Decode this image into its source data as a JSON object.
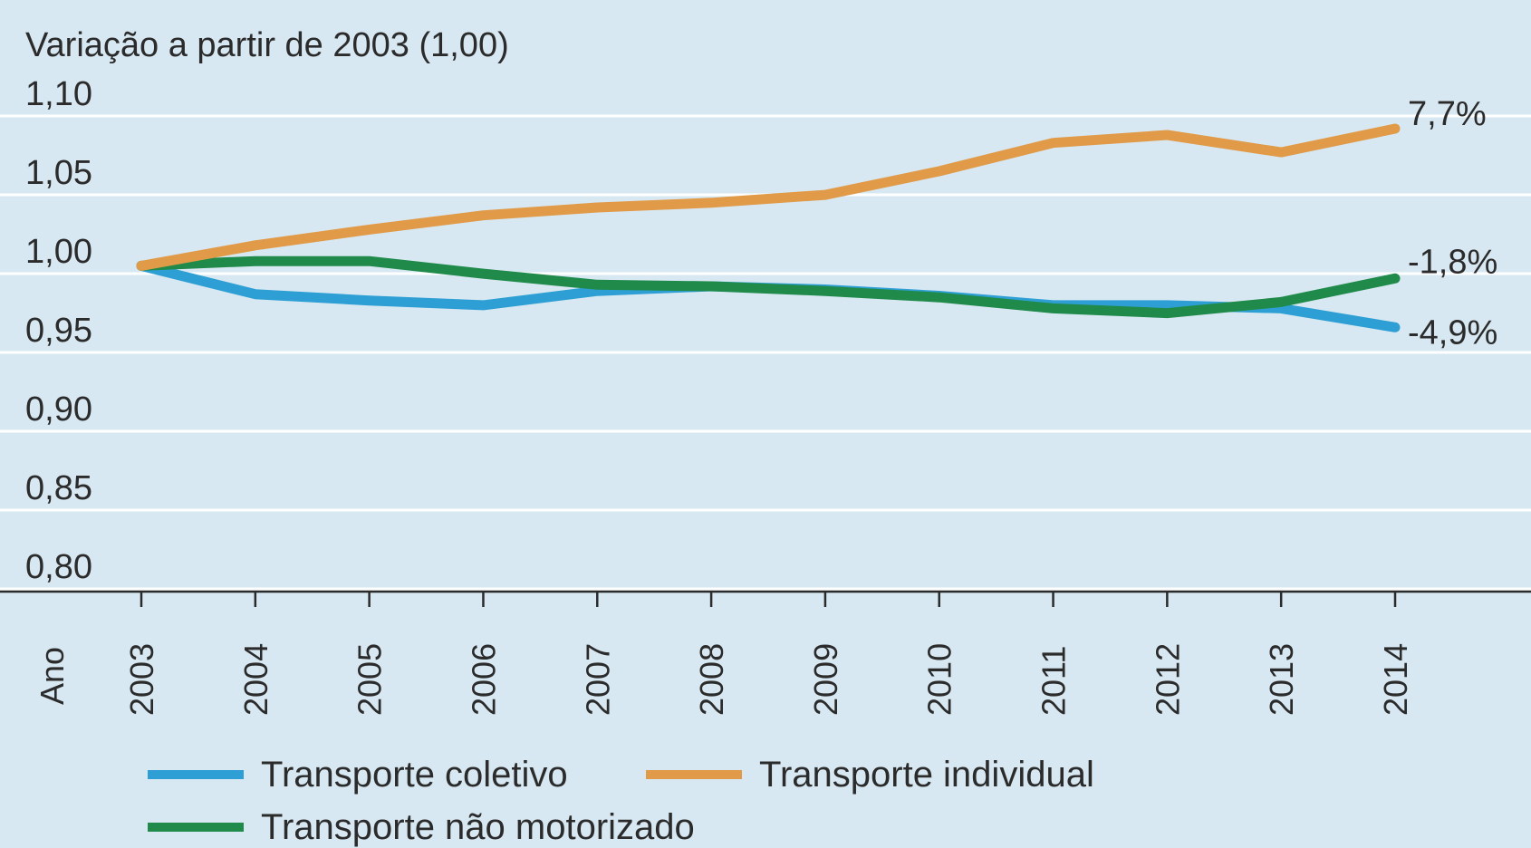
{
  "chart_data": {
    "type": "line",
    "title": "Variação a partir de 2003 (1,00)",
    "xlabel": "Ano",
    "ylabel": "",
    "x": [
      "2003",
      "2004",
      "2005",
      "2006",
      "2007",
      "2008",
      "2009",
      "2010",
      "2011",
      "2012",
      "2013",
      "2014"
    ],
    "ylim": [
      0.8,
      1.1
    ],
    "yticks": [
      1.1,
      1.05,
      1.0,
      0.95,
      0.9,
      0.85,
      0.8
    ],
    "ytick_labels": [
      "1,10",
      "1,05",
      "1,00",
      "0,95",
      "0,90",
      "0,85",
      "0,80"
    ],
    "grid": true,
    "legend_position": "bottom",
    "series": [
      {
        "name": "Transporte coletivo",
        "color": "#2e9fd4",
        "values": [
          0.99,
          0.972,
          0.968,
          0.965,
          0.974,
          0.977,
          0.975,
          0.971,
          0.965,
          0.965,
          0.963,
          0.951
        ],
        "end_label": "-4,9%"
      },
      {
        "name": "Transporte individual",
        "color": "#e19a48",
        "values": [
          0.99,
          1.003,
          1.013,
          1.022,
          1.027,
          1.03,
          1.035,
          1.05,
          1.068,
          1.073,
          1.062,
          1.077
        ],
        "end_label": "7,7%"
      },
      {
        "name": "Transporte não motorizado",
        "color": "#1f8a4a",
        "values": [
          0.99,
          0.993,
          0.993,
          0.985,
          0.978,
          0.977,
          0.974,
          0.97,
          0.963,
          0.96,
          0.967,
          0.982
        ],
        "end_label": "-1,8%"
      }
    ]
  }
}
